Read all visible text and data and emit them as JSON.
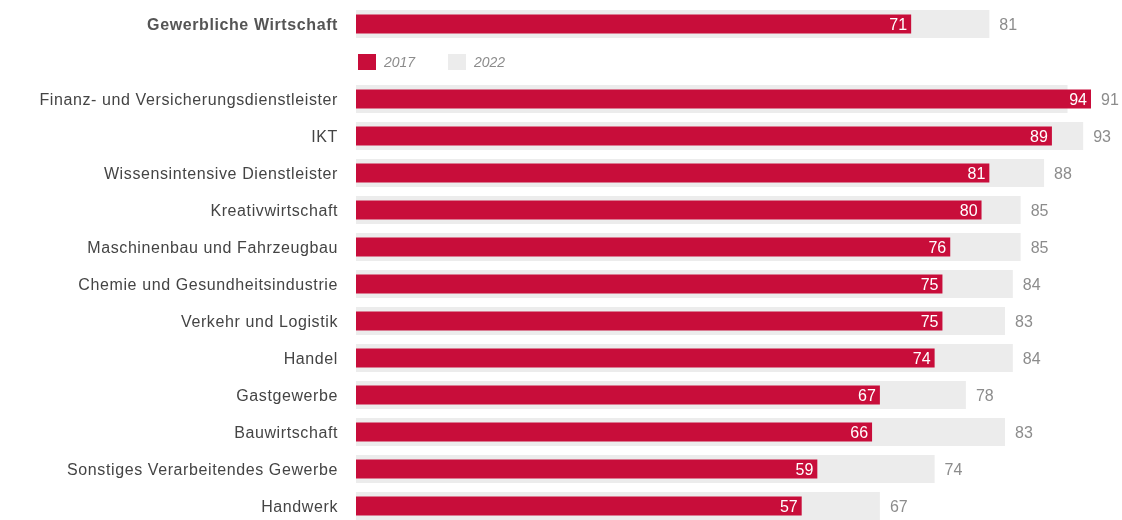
{
  "chart_data": {
    "type": "bar",
    "orientation": "horizontal",
    "categories": [
      "Gewerbliche Wirtschaft",
      "Finanz- und Versicherungsdienstleister",
      "IKT",
      "Wissensintensive Dienstleister",
      "Kreativwirtschaft",
      "Maschinenbau und Fahrzeugbau",
      "Chemie und Gesundheitsindustrie",
      "Verkehr und Logistik",
      "Handel",
      "Gastgewerbe",
      "Bauwirtschaft",
      "Sonstiges Verarbeitendes Gewerbe",
      "Handwerk"
    ],
    "series": [
      {
        "name": "2022",
        "color": "#ececec",
        "values": [
          81,
          91,
          93,
          88,
          85,
          85,
          84,
          83,
          84,
          78,
          83,
          74,
          67
        ]
      },
      {
        "name": "2017",
        "color": "#c80d3a",
        "values": [
          71,
          94,
          89,
          81,
          80,
          76,
          75,
          75,
          74,
          67,
          66,
          59,
          57
        ]
      }
    ],
    "data_labels": true,
    "legend": "top"
  }
}
